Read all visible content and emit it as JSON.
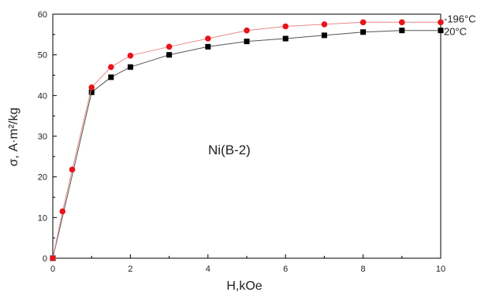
{
  "chart_data": {
    "type": "line",
    "xlabel": "H,kOe",
    "ylabel": "σ, A·m²/kg",
    "xlim": [
      0,
      10
    ],
    "ylim": [
      0,
      60
    ],
    "xticks": [
      "0",
      "2",
      "4",
      "6",
      "8",
      "10"
    ],
    "yticks": [
      "0",
      "10",
      "20",
      "30",
      "40",
      "50",
      "60"
    ],
    "grid": false,
    "annotation": "Ni(B-2)",
    "series": [
      {
        "name": "-196°C",
        "marker": "circle",
        "color": "#e8141b",
        "line_color": "#e88a8a",
        "x": [
          0,
          0.25,
          0.5,
          1,
          1.5,
          2,
          3,
          4,
          5,
          6,
          7,
          8,
          9,
          10
        ],
        "y": [
          0,
          11.5,
          21.8,
          42,
          47,
          49.8,
          52,
          54,
          56,
          57,
          57.5,
          58,
          58,
          58
        ]
      },
      {
        "name": "20°C",
        "marker": "square",
        "color": "#000000",
        "line_color": "#555555",
        "x": [
          0,
          1,
          1.5,
          2,
          3,
          4,
          5,
          6,
          7,
          8,
          9,
          10
        ],
        "y": [
          0,
          40.8,
          44.5,
          47,
          50,
          52,
          53.3,
          54,
          54.8,
          55.6,
          56,
          56
        ]
      }
    ]
  }
}
